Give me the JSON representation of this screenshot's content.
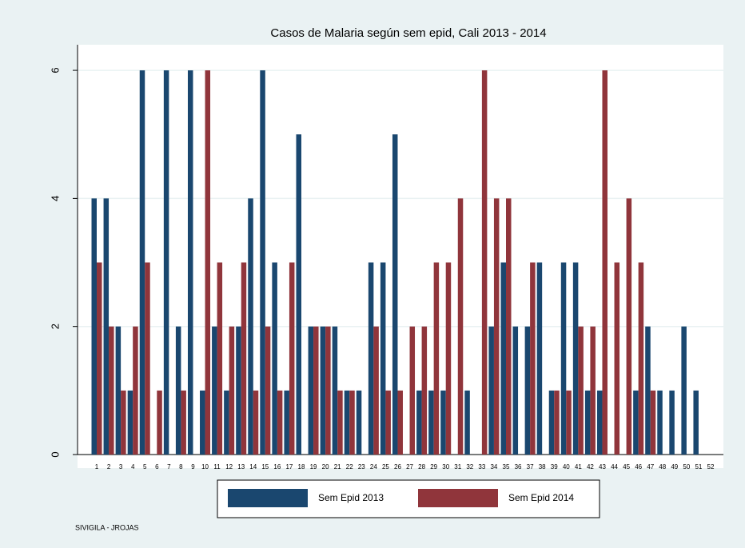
{
  "chart_data": {
    "type": "bar",
    "title": "Casos de Malaria según sem epid, Cali 2013 - 2014",
    "categories": [
      "1",
      "2",
      "3",
      "4",
      "5",
      "6",
      "7",
      "8",
      "9",
      "10",
      "11",
      "12",
      "13",
      "14",
      "15",
      "16",
      "17",
      "18",
      "19",
      "20",
      "21",
      "22",
      "23",
      "24",
      "25",
      "26",
      "27",
      "28",
      "29",
      "30",
      "31",
      "32",
      "33",
      "34",
      "35",
      "36",
      "37",
      "38",
      "39",
      "40",
      "41",
      "42",
      "43",
      "44",
      "45",
      "46",
      "47",
      "48",
      "49",
      "50",
      "51",
      "52"
    ],
    "series": [
      {
        "name": "Sem Epid 2013",
        "color": "#1a476f",
        "values": [
          4,
          4,
          2,
          1,
          6,
          0,
          6,
          2,
          6,
          1,
          2,
          1,
          2,
          4,
          6,
          3,
          1,
          5,
          2,
          2,
          2,
          1,
          1,
          3,
          3,
          5,
          0,
          1,
          1,
          1,
          0,
          1,
          0,
          2,
          3,
          2,
          2,
          3,
          1,
          3,
          3,
          1,
          1,
          0,
          0,
          1,
          2,
          1,
          1,
          2,
          1,
          0
        ]
      },
      {
        "name": "Sem Epid 2014",
        "color": "#90353b",
        "values": [
          3,
          2,
          1,
          2,
          3,
          1,
          0,
          1,
          0,
          6,
          3,
          2,
          3,
          1,
          2,
          1,
          3,
          0,
          2,
          2,
          1,
          1,
          0,
          2,
          1,
          1,
          2,
          2,
          3,
          3,
          4,
          0,
          6,
          4,
          4,
          0,
          3,
          0,
          1,
          1,
          2,
          2,
          6,
          3,
          4,
          3,
          1,
          0,
          0,
          0,
          0,
          0
        ]
      }
    ],
    "ylim": [
      0,
      6.4
    ],
    "yticks": [
      0,
      2,
      4,
      6
    ],
    "grid": true,
    "note": "SIVIGILA - JROJAS"
  }
}
